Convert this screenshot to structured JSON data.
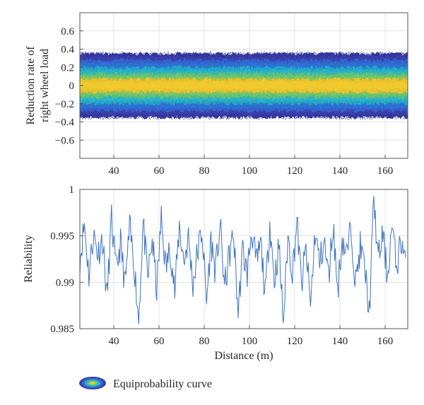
{
  "chart_data": [
    {
      "type": "area",
      "ylabel_line1": "Reduction rate of",
      "ylabel_line2": "right wheel load",
      "xlabel": "",
      "xlim": [
        25,
        170
      ],
      "ylim": [
        -0.8,
        0.8
      ],
      "xticks": [
        40,
        60,
        80,
        100,
        120,
        140,
        160
      ],
      "yticks": [
        0.6,
        0.4,
        0.2,
        0,
        -0.2,
        -0.4,
        -0.6
      ],
      "xtick_labels": [
        "40",
        "60",
        "80",
        "100",
        "120",
        "140",
        "160"
      ],
      "ytick_labels": [
        "0.6",
        "0.4",
        "0.2",
        "0",
        "−0.2",
        "−0.4",
        "−0.6"
      ],
      "grid": true,
      "band_levels": [
        0.35,
        0.28,
        0.2,
        0.13,
        0.07
      ],
      "band_colors": [
        "#3b3ea8",
        "#2d6fd4",
        "#29b3c9",
        "#73c769",
        "#f0c92e"
      ],
      "series": [
        {
          "values": []
        }
      ]
    },
    {
      "type": "line",
      "xlabel": "Distance (m)",
      "ylabel": "Reliability",
      "xlim": [
        25,
        170
      ],
      "ylim": [
        0.985,
        1.0
      ],
      "xticks": [
        40,
        60,
        80,
        100,
        120,
        140,
        160
      ],
      "yticks": [
        1,
        0.995,
        0.99,
        0.985
      ],
      "xtick_labels": [
        "40",
        "60",
        "80",
        "100",
        "120",
        "140",
        "160"
      ],
      "ytick_labels": [
        "1",
        "0.995",
        "0.99",
        "0.985"
      ],
      "grid": true,
      "line_color": "#3d74c0",
      "x": [
        25,
        27,
        29,
        31,
        33,
        35,
        37,
        39,
        41,
        43,
        45,
        47,
        49,
        51,
        53,
        55,
        57,
        59,
        61,
        63,
        65,
        67,
        69,
        71,
        73,
        75,
        77,
        79,
        81,
        83,
        85,
        87,
        89,
        91,
        93,
        95,
        97,
        99,
        101,
        103,
        105,
        107,
        109,
        111,
        113,
        115,
        117,
        119,
        121,
        123,
        125,
        127,
        129,
        131,
        133,
        135,
        137,
        139,
        141,
        143,
        145,
        147,
        149,
        151,
        153,
        155,
        157,
        159,
        161,
        163,
        165,
        167,
        169
      ],
      "values": [
        0.9925,
        0.9963,
        0.9908,
        0.9952,
        0.9931,
        0.9947,
        0.9883,
        0.9968,
        0.9912,
        0.9942,
        0.9896,
        0.9958,
        0.9921,
        0.9859,
        0.9964,
        0.9903,
        0.9946,
        0.9892,
        0.9969,
        0.9915,
        0.9938,
        0.9889,
        0.9961,
        0.9922,
        0.9948,
        0.9898,
        0.9932,
        0.9956,
        0.9879,
        0.9945,
        0.9911,
        0.9962,
        0.9894,
        0.9928,
        0.9951,
        0.9867,
        0.9935,
        0.9909,
        0.9957,
        0.9919,
        0.9942,
        0.9885,
        0.9965,
        0.9902,
        0.9939,
        0.9857,
        0.9949,
        0.9912,
        0.9966,
        0.9897,
        0.9936,
        0.9874,
        0.9954,
        0.9921,
        0.9944,
        0.9905,
        0.9962,
        0.9891,
        0.9947,
        0.9929,
        0.9959,
        0.9899,
        0.9938,
        0.9915,
        0.9867,
        0.9989,
        0.9924,
        0.9952,
        0.9906,
        0.9961,
        0.9916,
        0.9945,
        0.9927
      ]
    }
  ],
  "legend": {
    "label": "Equiprobability curve",
    "icon": "equiprobability-ellipse-icon"
  }
}
